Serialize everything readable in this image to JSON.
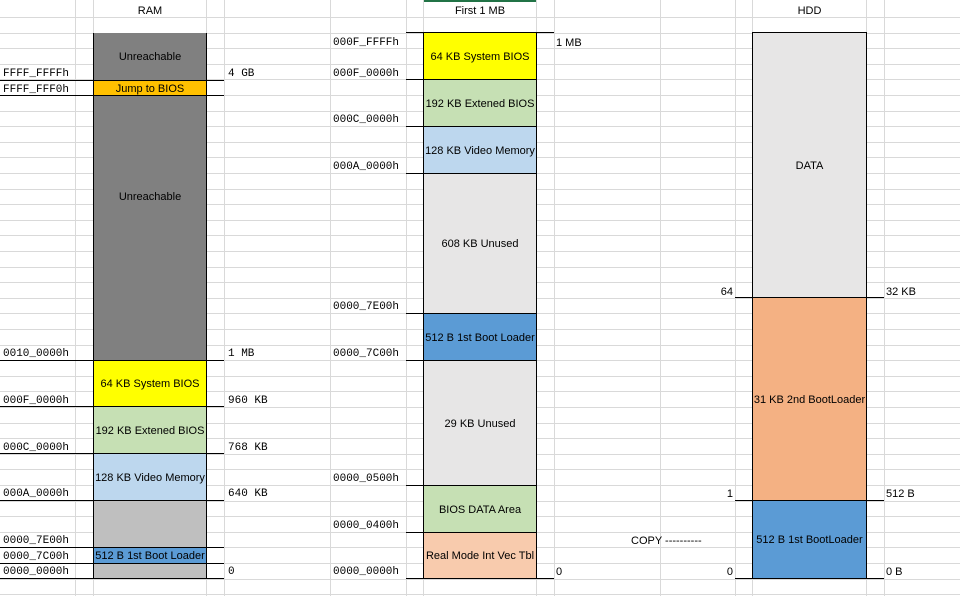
{
  "columns": {
    "ram": "RAM",
    "first_mb": "First 1 MB",
    "hdd": "HDD"
  },
  "ram": {
    "blocks": [
      {
        "label": "Unreachable",
        "color": "#808080"
      },
      {
        "label": "Jump to BIOS",
        "color": "#FFC000"
      },
      {
        "label": "Unreachable",
        "color": "#808080"
      },
      {
        "label": "64 KB System BIOS",
        "color": "#FFFF00"
      },
      {
        "label": "192 KB Extened BIOS",
        "color": "#C6E0B4"
      },
      {
        "label": "128 KB Video Memory",
        "color": "#BDD7EE"
      },
      {
        "label": "",
        "color": "#BFBFBF"
      },
      {
        "label": "512 B 1st Boot Loader",
        "color": "#5B9BD5"
      },
      {
        "label": "",
        "color": "#BFBFBF"
      }
    ],
    "addresses": [
      "FFFF_FFFFh",
      "FFFF_FFF0h",
      "0010_0000h",
      "000F_0000h",
      "000C_0000h",
      "000A_0000h",
      "0000_7E00h",
      "0000_7C00h",
      "0000_0000h"
    ],
    "sizes": [
      "4 GB",
      "1 MB",
      "960 KB",
      "768 KB",
      "640 KB",
      "0"
    ]
  },
  "first_mb": {
    "blocks": [
      {
        "label": "64 KB System BIOS",
        "color": "#FFFF00"
      },
      {
        "label": "192 KB Extened BIOS",
        "color": "#C6E0B4"
      },
      {
        "label": "128 KB Video Memory",
        "color": "#BDD7EE"
      },
      {
        "label": "608 KB Unused",
        "color": "#E7E6E6"
      },
      {
        "label": "512 B 1st Boot Loader",
        "color": "#5B9BD5"
      },
      {
        "label": "29 KB Unused",
        "color": "#E7E6E6"
      },
      {
        "label": "BIOS DATA Area",
        "color": "#C6E0B4"
      },
      {
        "label": "Real Mode Int Vec Tbl",
        "color": "#F8CBAD"
      }
    ],
    "addresses": [
      "000F_FFFFh",
      "000F_0000h",
      "000C_0000h",
      "000A_0000h",
      "0000_7E00h",
      "0000_7C00h",
      "0000_0500h",
      "0000_0400h",
      "0000_0000h"
    ],
    "sizes": [
      "1 MB",
      "0"
    ]
  },
  "hdd": {
    "blocks": [
      {
        "label": "DATA",
        "color": "#E7E6E6"
      },
      {
        "label": "31 KB 2nd BootLoader",
        "color": "#F4B183"
      },
      {
        "label": "512 B 1st BootLoader",
        "color": "#5B9BD5"
      }
    ],
    "sectors": [
      "64",
      "1",
      "0"
    ],
    "sizes": [
      "32 KB",
      "512 B",
      "0 B"
    ],
    "copy_label": "COPY ----------"
  }
}
